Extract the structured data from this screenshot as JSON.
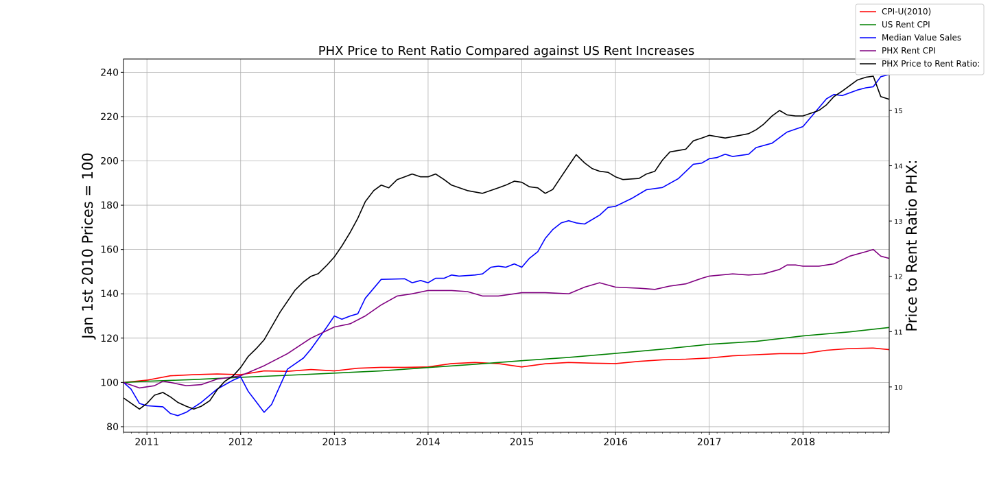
{
  "chart_data": {
    "type": "line",
    "title": "PHX Price to Rent Ratio Compared against US Rent Increases",
    "ylabel": "Jan 1st 2010 Prices = 100",
    "y2label": "Price to Rent Ratio PHX:",
    "xlim": [
      2010.75,
      2018.92
    ],
    "ylim": [
      77.5,
      246
    ],
    "y2lim": [
      9.18,
      15.93
    ],
    "x_ticks": [
      2011,
      2012,
      2013,
      2014,
      2015,
      2016,
      2017,
      2018
    ],
    "y_ticks": [
      80,
      100,
      120,
      140,
      160,
      180,
      200,
      220,
      240
    ],
    "y2_ticks": [
      10,
      11,
      12,
      13,
      14,
      15
    ],
    "grid": true,
    "legend_position": "top-right",
    "series": [
      {
        "name": "CPI-U(2010)",
        "color": "#ff0000",
        "axis": "left",
        "x": [
          2010.75,
          2011.0,
          2011.25,
          2011.5,
          2011.75,
          2012.0,
          2012.25,
          2012.5,
          2012.75,
          2013.0,
          2013.25,
          2013.5,
          2013.75,
          2014.0,
          2014.25,
          2014.5,
          2014.75,
          2015.0,
          2015.25,
          2015.5,
          2015.75,
          2016.0,
          2016.25,
          2016.5,
          2016.75,
          2017.0,
          2017.25,
          2017.5,
          2017.75,
          2018.0,
          2018.25,
          2018.5,
          2018.75,
          2018.92
        ],
        "y": [
          100,
          101,
          103,
          103.5,
          103.8,
          103.5,
          105.2,
          105,
          105.8,
          105.2,
          106.4,
          106.8,
          106.8,
          107,
          108.5,
          109,
          108.5,
          107,
          108.4,
          109,
          108.7,
          108.5,
          109.5,
          110.2,
          110.5,
          111,
          112,
          112.5,
          113,
          113,
          114.5,
          115.3,
          115.5,
          114.8
        ]
      },
      {
        "name": "US Rent CPI",
        "color": "#008000",
        "axis": "left",
        "x": [
          2010.75,
          2011.0,
          2011.5,
          2012.0,
          2012.5,
          2013.0,
          2013.5,
          2014.0,
          2014.5,
          2015.0,
          2015.5,
          2016.0,
          2016.5,
          2017.0,
          2017.5,
          2018.0,
          2018.5,
          2018.92
        ],
        "y": [
          100,
          100.5,
          101.3,
          102.3,
          103.2,
          104.2,
          105.2,
          106.7,
          108.2,
          109.8,
          111.3,
          113.1,
          115,
          117.2,
          118.5,
          121,
          122.8,
          124.8
        ]
      },
      {
        "name": "Median Value Sales",
        "color": "#0000ff",
        "axis": "left",
        "x": [
          2010.75,
          2010.83,
          2010.92,
          2011.0,
          2011.17,
          2011.25,
          2011.33,
          2011.42,
          2011.58,
          2011.75,
          2011.92,
          2012.0,
          2012.08,
          2012.17,
          2012.25,
          2012.33,
          2012.5,
          2012.67,
          2012.75,
          2012.92,
          2013.0,
          2013.08,
          2013.17,
          2013.25,
          2013.33,
          2013.5,
          2013.75,
          2013.83,
          2013.92,
          2014.0,
          2014.08,
          2014.17,
          2014.25,
          2014.33,
          2014.5,
          2014.58,
          2014.67,
          2014.75,
          2014.83,
          2014.92,
          2015.0,
          2015.08,
          2015.17,
          2015.25,
          2015.33,
          2015.42,
          2015.5,
          2015.58,
          2015.67,
          2015.83,
          2015.92,
          2016.0,
          2016.17,
          2016.33,
          2016.5,
          2016.67,
          2016.83,
          2016.92,
          2017.0,
          2017.08,
          2017.17,
          2017.25,
          2017.42,
          2017.5,
          2017.67,
          2017.83,
          2018.0,
          2018.17,
          2018.25,
          2018.33,
          2018.42,
          2018.58,
          2018.67,
          2018.75,
          2018.83,
          2018.92
        ],
        "y": [
          100,
          97,
          90.5,
          89.5,
          89,
          86,
          85,
          86.5,
          91,
          97,
          101,
          102.5,
          96,
          91,
          86.5,
          90,
          106,
          111,
          115,
          125,
          130,
          128.5,
          130,
          131,
          138,
          146.5,
          146.8,
          145,
          146,
          145,
          147,
          147,
          148.5,
          148,
          148.5,
          149,
          152,
          152.5,
          152,
          153.5,
          152,
          156,
          159,
          165,
          169,
          172,
          173,
          172,
          171.5,
          175.5,
          179,
          179.5,
          183,
          187,
          188,
          192,
          198.5,
          199,
          201,
          201.5,
          203,
          202,
          203,
          206,
          208,
          213,
          215.5,
          224,
          228,
          230,
          229.5,
          232,
          233,
          233.5,
          238,
          239
        ]
      },
      {
        "name": "PHX Rent CPI",
        "color": "#800080",
        "axis": "left",
        "x": [
          2010.75,
          2010.92,
          2011.08,
          2011.17,
          2011.25,
          2011.42,
          2011.58,
          2011.75,
          2011.92,
          2012.0,
          2012.25,
          2012.5,
          2012.75,
          2013.0,
          2013.17,
          2013.33,
          2013.5,
          2013.67,
          2013.83,
          2014.0,
          2014.25,
          2014.42,
          2014.58,
          2014.75,
          2014.92,
          2015.0,
          2015.25,
          2015.5,
          2015.67,
          2015.83,
          2016.0,
          2016.25,
          2016.42,
          2016.58,
          2016.75,
          2016.92,
          2017.0,
          2017.25,
          2017.42,
          2017.58,
          2017.75,
          2017.83,
          2017.92,
          2018.0,
          2018.17,
          2018.33,
          2018.5,
          2018.67,
          2018.75,
          2018.83,
          2018.92
        ],
        "y": [
          100,
          97.5,
          98.5,
          100.5,
          100,
          98.5,
          99,
          101.5,
          102.5,
          103,
          107.5,
          113,
          120,
          125,
          126.5,
          130,
          135,
          139,
          140,
          141.5,
          141.5,
          141,
          139,
          139,
          140,
          140.5,
          140.5,
          140,
          143,
          145,
          143,
          142.5,
          142,
          143.5,
          144.5,
          147,
          148,
          149,
          148.5,
          149,
          151,
          153,
          153,
          152.5,
          152.5,
          153.5,
          157,
          159,
          160,
          157,
          156
        ]
      },
      {
        "name": "PHX Price to Rent Ratio:",
        "color": "#000000",
        "axis": "right",
        "x": [
          2010.75,
          2010.92,
          2011.0,
          2011.08,
          2011.17,
          2011.25,
          2011.33,
          2011.42,
          2011.5,
          2011.58,
          2011.67,
          2011.75,
          2011.83,
          2011.92,
          2012.0,
          2012.08,
          2012.17,
          2012.25,
          2012.42,
          2012.58,
          2012.67,
          2012.75,
          2012.83,
          2012.92,
          2013.0,
          2013.08,
          2013.17,
          2013.25,
          2013.33,
          2013.42,
          2013.5,
          2013.58,
          2013.67,
          2013.75,
          2013.83,
          2013.92,
          2014.0,
          2014.08,
          2014.17,
          2014.25,
          2014.42,
          2014.58,
          2014.75,
          2014.83,
          2014.92,
          2015.0,
          2015.08,
          2015.17,
          2015.25,
          2015.33,
          2015.42,
          2015.5,
          2015.58,
          2015.67,
          2015.75,
          2015.83,
          2015.92,
          2016.0,
          2016.08,
          2016.25,
          2016.33,
          2016.42,
          2016.5,
          2016.58,
          2016.75,
          2016.83,
          2016.92,
          2017.0,
          2017.17,
          2017.33,
          2017.42,
          2017.5,
          2017.58,
          2017.67,
          2017.75,
          2017.83,
          2017.92,
          2018.0,
          2018.17,
          2018.25,
          2018.33,
          2018.42,
          2018.5,
          2018.58,
          2018.67,
          2018.75,
          2018.83,
          2018.92
        ],
        "y": [
          9.8,
          9.6,
          9.7,
          9.85,
          9.9,
          9.82,
          9.72,
          9.65,
          9.6,
          9.65,
          9.75,
          9.95,
          10.1,
          10.2,
          10.35,
          10.55,
          10.7,
          10.85,
          11.35,
          11.75,
          11.9,
          12.0,
          12.05,
          12.2,
          12.35,
          12.55,
          12.8,
          13.05,
          13.35,
          13.55,
          13.65,
          13.6,
          13.75,
          13.8,
          13.85,
          13.8,
          13.8,
          13.85,
          13.75,
          13.65,
          13.55,
          13.5,
          13.6,
          13.65,
          13.72,
          13.7,
          13.62,
          13.6,
          13.5,
          13.57,
          13.8,
          14.0,
          14.2,
          14.05,
          13.95,
          13.9,
          13.88,
          13.8,
          13.75,
          13.77,
          13.85,
          13.9,
          14.1,
          14.25,
          14.3,
          14.45,
          14.5,
          14.55,
          14.5,
          14.55,
          14.58,
          14.65,
          14.75,
          14.9,
          15.0,
          14.92,
          14.9,
          14.9,
          15.0,
          15.1,
          15.25,
          15.35,
          15.45,
          15.55,
          15.6,
          15.62,
          15.25,
          15.2
        ]
      }
    ]
  }
}
